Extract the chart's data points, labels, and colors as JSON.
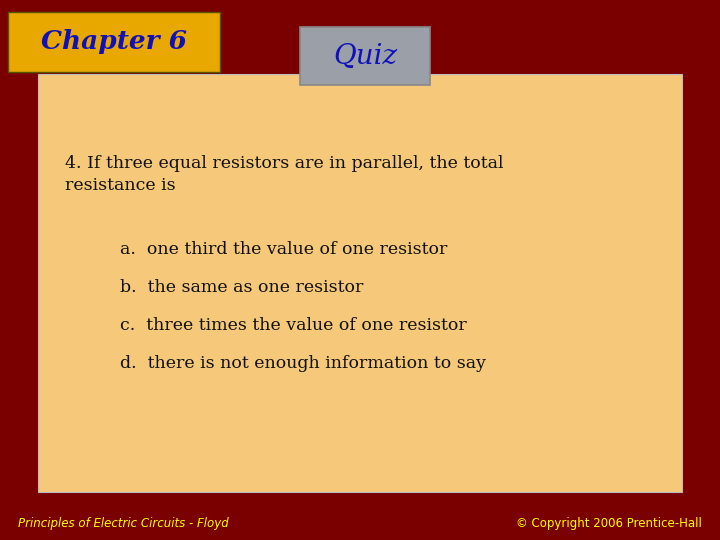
{
  "background_color": "#7A0000",
  "slide_bg": "#F5C87A",
  "chapter_box_color_top": "#DAA520",
  "chapter_box_color": "#E8A800",
  "chapter_text": "Chapter 6",
  "chapter_text_color": "#1111BB",
  "quiz_box_color": "#9A9FA8",
  "quiz_text": "Quiz",
  "quiz_text_color": "#1111BB",
  "question_text_line1": "4. If three equal resistors are in parallel, the total",
  "question_text_line2": "resistance is",
  "answers": [
    "a.  one third the value of one resistor",
    "b.  the same as one resistor",
    "c.  three times the value of one resistor",
    "d.  there is not enough information to say"
  ],
  "text_color": "#111111",
  "footer_left": "Principles of Electric Circuits - Floyd",
  "footer_right": "© Copyright 2006 Prentice-Hall",
  "footer_color": "#FFFF00",
  "fig_width": 7.2,
  "fig_height": 5.4,
  "dpi": 100
}
